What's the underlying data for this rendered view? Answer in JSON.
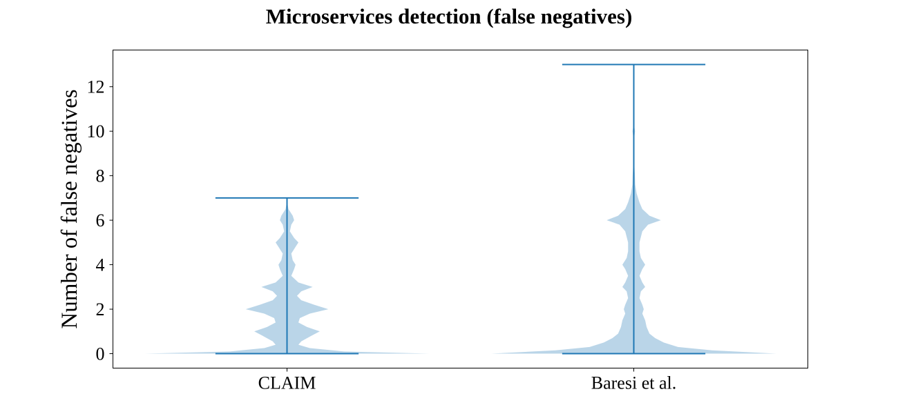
{
  "chart_data": {
    "type": "violin",
    "title": "Microservices detection (false negatives)",
    "xlabel": "",
    "ylabel": "Number of false negatives",
    "categories": [
      "CLAIM",
      "Baresi et al."
    ],
    "ylim": [
      -0.65,
      13.65
    ],
    "yticks": [
      0,
      2,
      4,
      6,
      8,
      10,
      12
    ],
    "grid": false,
    "colors": {
      "body": "#bad5e8",
      "line": "#1f77b4"
    },
    "series": [
      {
        "category": "CLAIM",
        "min": 0,
        "max": 7,
        "density_profile": [
          [
            0.0,
            1.0
          ],
          [
            0.1,
            0.4
          ],
          [
            0.25,
            0.16
          ],
          [
            0.4,
            0.08
          ],
          [
            0.55,
            0.1
          ],
          [
            0.8,
            0.17
          ],
          [
            1.0,
            0.23
          ],
          [
            1.2,
            0.14
          ],
          [
            1.4,
            0.08
          ],
          [
            1.6,
            0.09
          ],
          [
            1.8,
            0.16
          ],
          [
            2.0,
            0.29
          ],
          [
            2.2,
            0.19
          ],
          [
            2.4,
            0.1
          ],
          [
            2.6,
            0.07
          ],
          [
            2.8,
            0.1
          ],
          [
            3.0,
            0.18
          ],
          [
            3.2,
            0.08
          ],
          [
            3.5,
            0.03
          ],
          [
            3.8,
            0.05
          ],
          [
            4.0,
            0.06
          ],
          [
            4.2,
            0.04
          ],
          [
            4.5,
            0.03
          ],
          [
            4.8,
            0.06
          ],
          [
            5.0,
            0.08
          ],
          [
            5.2,
            0.05
          ],
          [
            5.5,
            0.02
          ],
          [
            5.8,
            0.03
          ],
          [
            6.0,
            0.05
          ],
          [
            6.2,
            0.04
          ],
          [
            6.5,
            0.01
          ],
          [
            6.8,
            0.002
          ],
          [
            7.0,
            0.0
          ]
        ]
      },
      {
        "category": "Baresi et al.",
        "min": 0,
        "max": 13,
        "density_profile": [
          [
            0.0,
            1.0
          ],
          [
            0.15,
            0.55
          ],
          [
            0.3,
            0.31
          ],
          [
            0.5,
            0.21
          ],
          [
            0.7,
            0.15
          ],
          [
            0.9,
            0.11
          ],
          [
            1.2,
            0.09
          ],
          [
            1.5,
            0.08
          ],
          [
            1.8,
            0.06
          ],
          [
            2.0,
            0.07
          ],
          [
            2.2,
            0.06
          ],
          [
            2.5,
            0.04
          ],
          [
            2.8,
            0.05
          ],
          [
            3.0,
            0.08
          ],
          [
            3.2,
            0.06
          ],
          [
            3.5,
            0.04
          ],
          [
            3.8,
            0.06
          ],
          [
            4.0,
            0.08
          ],
          [
            4.3,
            0.05
          ],
          [
            4.6,
            0.04
          ],
          [
            5.0,
            0.04
          ],
          [
            5.5,
            0.06
          ],
          [
            5.8,
            0.1
          ],
          [
            6.0,
            0.19
          ],
          [
            6.2,
            0.11
          ],
          [
            6.5,
            0.06
          ],
          [
            6.8,
            0.04
          ],
          [
            7.2,
            0.02
          ],
          [
            7.6,
            0.01
          ],
          [
            8.0,
            0.008
          ],
          [
            8.5,
            0.004
          ],
          [
            9.0,
            0.001
          ],
          [
            9.5,
            0.001
          ],
          [
            9.8,
            0.005
          ],
          [
            10.0,
            0.009
          ],
          [
            10.2,
            0.004
          ],
          [
            10.6,
            0.001
          ],
          [
            11.5,
            0.0
          ],
          [
            12.0,
            0.003
          ],
          [
            12.5,
            0.0
          ],
          [
            13.0,
            0.0
          ]
        ]
      }
    ]
  }
}
